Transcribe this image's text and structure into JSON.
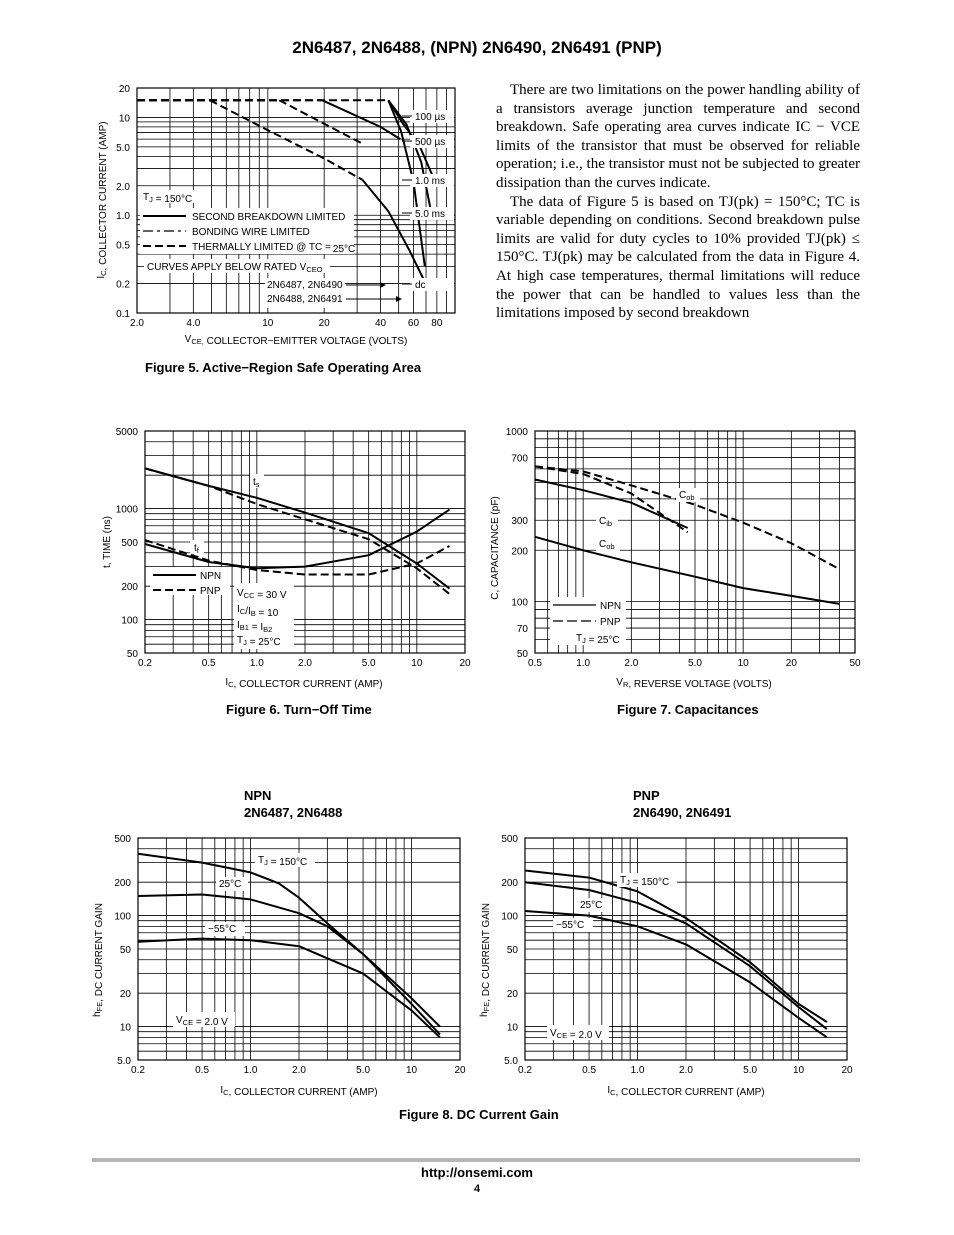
{
  "header": {
    "title": "2N6487, 2N6488, (NPN) 2N6490, 2N6491 (PNP)"
  },
  "body_text": {
    "p1": "There are two limitations on the power handling ability of a transistors average junction temperature and second breakdown. Safe operating area curves indicate IC − VCE limits of the transistor that must be observed for reliable operation; i.e., the transistor must not be subjected to greater dissipation than the curves indicate.",
    "p2": "The data of Figure 5 is based on TJ(pk) = 150°C; TC is variable depending on conditions. Second breakdown pulse limits are valid for duty cycles to 10% provided TJ(pk) ≤ 150°C. TJ(pk) may be calculated from the data in Figure 4. At high case temperatures, thermal limitations will reduce the power that can be handled to values less than the limitations imposed by second breakdown"
  },
  "captions": {
    "fig5": "Figure 5. Active−Region Safe Operating Area",
    "fig6": "Figure 6. Turn−Off Time",
    "fig7": "Figure 7. Capacitances",
    "fig8": "Figure 8. DC Current Gain"
  },
  "subtitles": {
    "npn_line1": "NPN",
    "npn_line2": "2N6487, 2N6488",
    "pnp_line1": "PNP",
    "pnp_line2": "2N6490, 2N6491"
  },
  "footer": {
    "url": "http://onsemi.com",
    "page": "4"
  },
  "chart_data": [
    {
      "id": "fig5",
      "type": "line",
      "log_x": true,
      "log_y": true,
      "xlim": [
        2,
        100
      ],
      "ylim": [
        0.1,
        20
      ],
      "xticks": [
        "2.0",
        "4.0",
        "10",
        "20",
        "40",
        "60",
        "80"
      ],
      "xtick_values": [
        2,
        4,
        10,
        20,
        40,
        60,
        80
      ],
      "yticks": [
        "20",
        "10",
        "5.0",
        "2.0",
        "1.0",
        "0.5",
        "0.2",
        "0.1"
      ],
      "ytick_values": [
        20,
        10,
        5,
        2,
        1,
        0.5,
        0.2,
        0.1
      ],
      "xlabel": "VCE, COLLECTOR−EMITTER VOLTAGE (VOLTS)",
      "ylabel": "IC, COLLECTOR CURRENT (AMP)",
      "annotations": [
        "TJ = 150°C",
        "SECOND BREAKDOWN LIMITED",
        "BONDING WIRE LIMITED",
        "THERMALLY LIMITED @ TC = 25°C",
        "CURVES APPLY BELOW RATED VCEO",
        "2N6487, 2N6490",
        "2N6488, 2N6491",
        "100 µs",
        "500 µs",
        "1.0 ms",
        "5.0 ms",
        "dc"
      ],
      "series": [
        {
          "style": "dashed",
          "x": [
            2,
            4.9
          ],
          "y": [
            15,
            15
          ]
        },
        {
          "style": "dashed",
          "x": [
            2,
            11.5
          ],
          "y": [
            15,
            15
          ]
        },
        {
          "style": "dashed",
          "x": [
            2,
            19.5
          ],
          "y": [
            15,
            15
          ]
        },
        {
          "style": "dashed",
          "x": [
            2,
            44
          ],
          "y": [
            15,
            15
          ]
        },
        {
          "style": "dashed",
          "x": [
            4.9,
            10,
            20,
            32
          ],
          "y": [
            15,
            7.4,
            3.8,
            2.3
          ]
        },
        {
          "style": "dashed",
          "x": [
            11.5,
            20,
            32
          ],
          "y": [
            15,
            8.6,
            5.4
          ]
        },
        {
          "style": "solid",
          "x": [
            19.5,
            40,
            51
          ],
          "y": [
            15,
            8,
            6
          ]
        },
        {
          "style": "solid",
          "x": [
            44,
            52,
            65,
            80
          ],
          "y": [
            15,
            9,
            5,
            2
          ]
        },
        {
          "style": "solid",
          "x": [
            44,
            55,
            66,
            76
          ],
          "y": [
            15,
            8.5,
            3.5,
            0.9
          ]
        },
        {
          "style": "solid",
          "x": [
            44,
            51.5,
            60,
            69
          ],
          "y": [
            15,
            7.2,
            2.2,
            0.3
          ]
        },
        {
          "style": "solid",
          "x": [
            32,
            44,
            57,
            68
          ],
          "y": [
            2.3,
            1.1,
            0.44,
            0.22
          ]
        }
      ]
    },
    {
      "id": "fig6",
      "type": "line",
      "log_x": true,
      "log_y": true,
      "xlim": [
        0.2,
        20
      ],
      "ylim": [
        50,
        5000
      ],
      "xticks": [
        "0.2",
        "0.5",
        "1.0",
        "2.0",
        "5.0",
        "10",
        "20"
      ],
      "xtick_values": [
        0.2,
        0.5,
        1,
        2,
        5,
        10,
        20
      ],
      "yticks": [
        "5000",
        "1000",
        "500",
        "200",
        "100",
        "50"
      ],
      "ytick_values": [
        5000,
        1000,
        500,
        200,
        100,
        50
      ],
      "xlabel": "IC, COLLECTOR CURRENT (AMP)",
      "ylabel": "t, TIME (ns)",
      "annotations": [
        "ts",
        "tf",
        "NPN",
        "PNP",
        "VCC = 30 V",
        "IC/IB = 10",
        "IB1 = IB2",
        "TJ = 25°C"
      ],
      "series": [
        {
          "name": "NPN",
          "style": "solid",
          "x": [
            0.2,
            0.5,
            1,
            2,
            5,
            10,
            16
          ],
          "y": [
            2300,
            1600,
            1250,
            920,
            600,
            320,
            190
          ]
        },
        {
          "name": "PNP",
          "style": "dashed",
          "x": [
            0.2,
            0.5,
            1,
            2,
            5,
            10,
            16
          ],
          "y": [
            2300,
            1600,
            1100,
            800,
            530,
            290,
            170
          ]
        },
        {
          "name": "NPN",
          "style": "solid",
          "x": [
            0.2,
            0.5,
            1,
            2,
            5,
            10,
            16
          ],
          "y": [
            480,
            330,
            290,
            300,
            380,
            620,
            980
          ]
        },
        {
          "name": "PNP",
          "style": "dashed",
          "x": [
            0.2,
            0.5,
            1,
            2,
            5,
            10,
            16
          ],
          "y": [
            520,
            340,
            280,
            255,
            255,
            320,
            460
          ]
        }
      ]
    },
    {
      "id": "fig7",
      "type": "line",
      "log_x": true,
      "log_y": true,
      "xlim": [
        0.5,
        50
      ],
      "ylim": [
        50,
        1000
      ],
      "xticks": [
        "0.5",
        "1.0",
        "2.0",
        "5.0",
        "10",
        "20",
        "50"
      ],
      "xtick_values": [
        0.5,
        1,
        2,
        5,
        10,
        20,
        50
      ],
      "yticks": [
        "1000",
        "700",
        "300",
        "200",
        "100",
        "70",
        "50"
      ],
      "ytick_values": [
        1000,
        700,
        300,
        200,
        100,
        70,
        50
      ],
      "xlabel": "VR, REVERSE VOLTAGE (VOLTS)",
      "ylabel": "C, CAPACITANCE (pF)",
      "annotations": [
        "Cob",
        "Cib",
        "Cob",
        "NPN",
        "PNP",
        "TJ = 25°C"
      ],
      "series": [
        {
          "name": "Cob",
          "style": "dashed",
          "x": [
            0.5,
            1,
            2,
            5,
            10,
            20,
            40
          ],
          "y": [
            620,
            580,
            480,
            370,
            290,
            220,
            155
          ]
        },
        {
          "name": "Cib",
          "style": "solid",
          "x": [
            0.5,
            1,
            2,
            4.5
          ],
          "y": [
            520,
            450,
            380,
            270
          ]
        },
        {
          "name": "Cib",
          "style": "dashed",
          "x": [
            0.5,
            1,
            2,
            4.5
          ],
          "y": [
            620,
            560,
            430,
            255
          ]
        },
        {
          "name": "Cob",
          "style": "solid",
          "x": [
            0.5,
            1,
            2,
            5,
            10,
            20,
            40
          ],
          "y": [
            240,
            200,
            170,
            140,
            120,
            108,
            97
          ]
        }
      ]
    },
    {
      "id": "fig8a",
      "type": "line",
      "log_x": true,
      "log_y": true,
      "xlim": [
        0.2,
        20
      ],
      "ylim": [
        5,
        500
      ],
      "xticks": [
        "0.2",
        "0.5",
        "1.0",
        "2.0",
        "5.0",
        "10",
        "20"
      ],
      "xtick_values": [
        0.2,
        0.5,
        1,
        2,
        5,
        10,
        20
      ],
      "yticks": [
        "500",
        "200",
        "100",
        "50",
        "20",
        "10",
        "5.0"
      ],
      "ytick_values": [
        500,
        200,
        100,
        50,
        20,
        10,
        5
      ],
      "xlabel": "IC, COLLECTOR CURRENT (AMP)",
      "ylabel": "hFE, DC CURRENT GAIN",
      "annotations": [
        "TJ = 150°C",
        "25°C",
        "−55°C",
        "VCE = 2.0 V"
      ],
      "series": [
        {
          "name": "TJ = 150°C",
          "x": [
            0.2,
            0.5,
            1,
            1.5,
            2,
            3,
            5,
            10,
            15
          ],
          "y": [
            360,
            300,
            245,
            195,
            145,
            85,
            45,
            18,
            10
          ]
        },
        {
          "name": "25°C",
          "x": [
            0.2,
            0.5,
            1,
            2,
            3,
            5,
            10,
            15
          ],
          "y": [
            150,
            155,
            140,
            105,
            80,
            45,
            16,
            8.5
          ]
        },
        {
          "name": "−55°C",
          "x": [
            0.2,
            0.5,
            1,
            2,
            5,
            10,
            15
          ],
          "y": [
            58,
            62,
            60,
            53,
            30,
            14,
            8
          ]
        }
      ]
    },
    {
      "id": "fig8b",
      "type": "line",
      "log_x": true,
      "log_y": true,
      "xlim": [
        0.2,
        20
      ],
      "ylim": [
        5,
        500
      ],
      "xticks": [
        "0.2",
        "0.5",
        "1.0",
        "2.0",
        "5.0",
        "10",
        "20"
      ],
      "xtick_values": [
        0.2,
        0.5,
        1,
        2,
        5,
        10,
        20
      ],
      "yticks": [
        "500",
        "200",
        "100",
        "50",
        "20",
        "10",
        "5.0"
      ],
      "ytick_values": [
        500,
        200,
        100,
        50,
        20,
        10,
        5
      ],
      "xlabel": "IC, COLLECTOR CURRENT (AMP)",
      "ylabel": "hFE, DC CURRENT GAIN",
      "annotations": [
        "TJ = 150°C",
        "25°C",
        "−55°C",
        "VCE = 2.0 V"
      ],
      "series": [
        {
          "name": "TJ = 150°C",
          "x": [
            0.2,
            0.5,
            1,
            2,
            5,
            10,
            15
          ],
          "y": [
            255,
            220,
            165,
            95,
            38,
            16,
            11
          ]
        },
        {
          "name": "25°C",
          "x": [
            0.2,
            0.5,
            1,
            2,
            5,
            10,
            15
          ],
          "y": [
            200,
            170,
            130,
            85,
            35,
            15,
            9.5
          ]
        },
        {
          "name": "−55°C",
          "x": [
            0.2,
            0.5,
            1,
            2,
            5,
            10,
            15
          ],
          "y": [
            110,
            100,
            80,
            55,
            25,
            12,
            8
          ]
        }
      ]
    }
  ]
}
